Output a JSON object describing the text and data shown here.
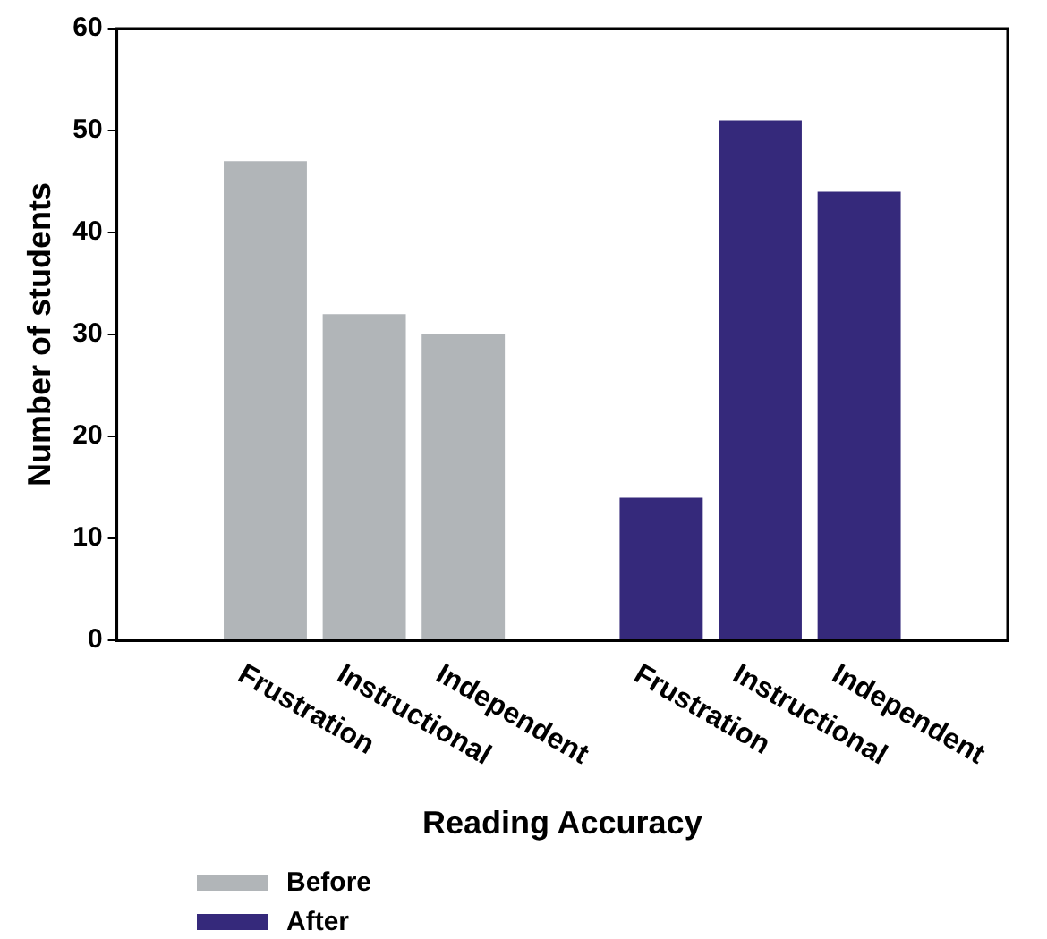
{
  "chart_data": {
    "type": "bar",
    "xlabel": "Reading Accuracy",
    "ylabel": "Number of students",
    "categories": [
      null,
      "Frustration",
      "Instructional",
      "Independent",
      null,
      "Frustration",
      "Instructional",
      "Independent",
      null
    ],
    "series": [
      {
        "name": "Before",
        "color": "#b1b5b8",
        "values": [
          null,
          47,
          32,
          30,
          null,
          null,
          null,
          null,
          null
        ]
      },
      {
        "name": "After",
        "color": "#35297b",
        "values": [
          null,
          null,
          null,
          null,
          null,
          14,
          51,
          44,
          null
        ]
      }
    ],
    "ylim": [
      0,
      60
    ],
    "yticks": [
      0,
      10,
      20,
      30,
      40,
      50,
      60
    ],
    "grid": false,
    "legend": "bottom left"
  }
}
